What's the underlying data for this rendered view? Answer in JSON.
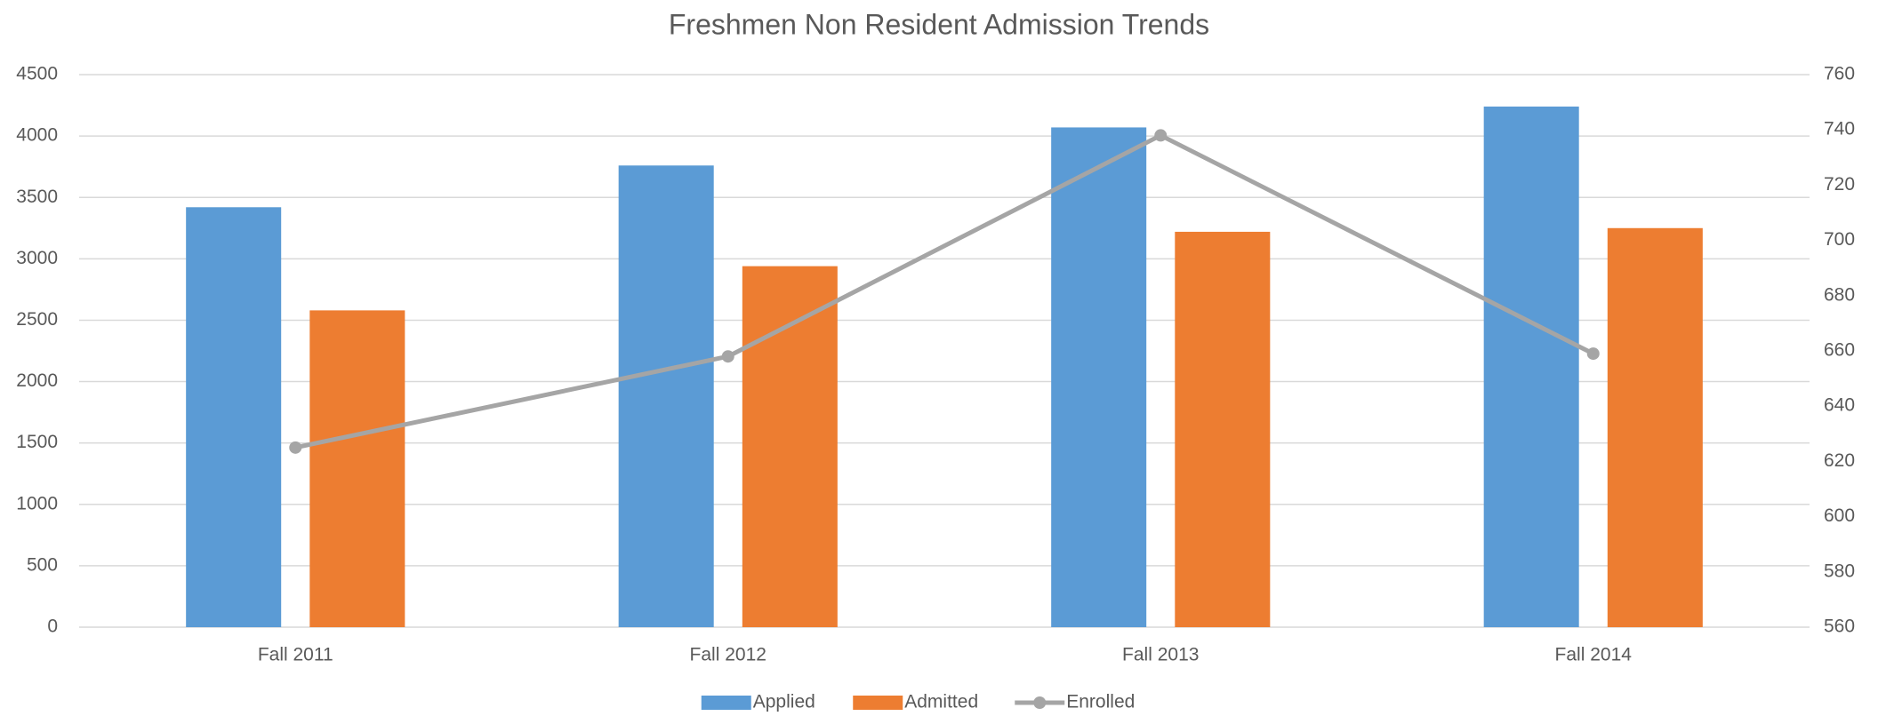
{
  "chart_data": {
    "type": "bar_line",
    "title": "Freshmen Non Resident Admission Trends",
    "categories": [
      "Fall 2011",
      "Fall 2012",
      "Fall 2013",
      "Fall 2014"
    ],
    "series": [
      {
        "name": "Applied",
        "type": "bar",
        "color": "#5b9bd5",
        "values": [
          3420,
          3760,
          4070,
          4240
        ]
      },
      {
        "name": "Admitted",
        "type": "bar",
        "color": "#ed7d31",
        "values": [
          2580,
          2940,
          3220,
          3250
        ]
      },
      {
        "name": "Enrolled",
        "type": "line",
        "color": "#a5a5a5",
        "axis": "y2",
        "values": [
          625,
          658,
          738,
          659
        ]
      }
    ],
    "ylim": [
      0,
      4500
    ],
    "yticks": [
      0,
      500,
      1000,
      1500,
      2000,
      2500,
      3000,
      3500,
      4000,
      4500
    ],
    "y2lim": [
      560,
      760
    ],
    "y2ticks": [
      560,
      580,
      600,
      620,
      640,
      660,
      680,
      700,
      720,
      740,
      760
    ],
    "grid": true,
    "legend": "bottom"
  }
}
